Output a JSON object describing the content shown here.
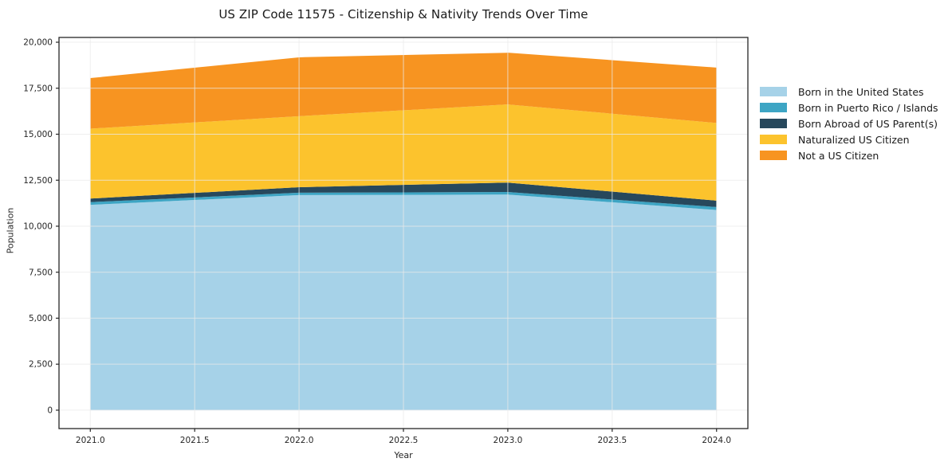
{
  "chart_data": {
    "type": "area",
    "stacked": true,
    "title": "US ZIP Code 11575 - Citizenship & Nativity Trends Over Time",
    "xlabel": "Year",
    "ylabel": "Population",
    "x": [
      2021,
      2022,
      2023,
      2024
    ],
    "series": [
      {
        "name": "Born in the United States",
        "color": "#a6d2e8",
        "values": [
          11160,
          11690,
          11720,
          10880
        ]
      },
      {
        "name": "Born in Puerto Rico / Islands",
        "color": "#3da5c4",
        "values": [
          150,
          130,
          140,
          160
        ]
      },
      {
        "name": "Born Abroad of US Parent(s)",
        "color": "#27485c",
        "values": [
          190,
          300,
          510,
          350
        ]
      },
      {
        "name": "Naturalized US Citizen",
        "color": "#fcc32d",
        "values": [
          3800,
          3860,
          4250,
          4220
        ]
      },
      {
        "name": "Not a US Citizen",
        "color": "#f79421",
        "values": [
          2750,
          3200,
          2810,
          3010
        ]
      }
    ],
    "cumulative_totals": [
      18050,
      19180,
      19430,
      18620
    ],
    "xlim": [
      2020.85,
      2024.15
    ],
    "ylim": [
      -1000,
      20260
    ],
    "xticks": [
      2021.0,
      2021.5,
      2022.0,
      2022.5,
      2023.0,
      2023.5,
      2024.0
    ],
    "yticks": [
      0,
      2500,
      5000,
      7500,
      10000,
      12500,
      15000,
      17500,
      20000
    ],
    "grid": true,
    "legend_position": "right",
    "colors": {
      "grid": "#e9e9e9",
      "axis": "#262626",
      "tick_label": "#262626",
      "background": "#ffffff"
    }
  }
}
